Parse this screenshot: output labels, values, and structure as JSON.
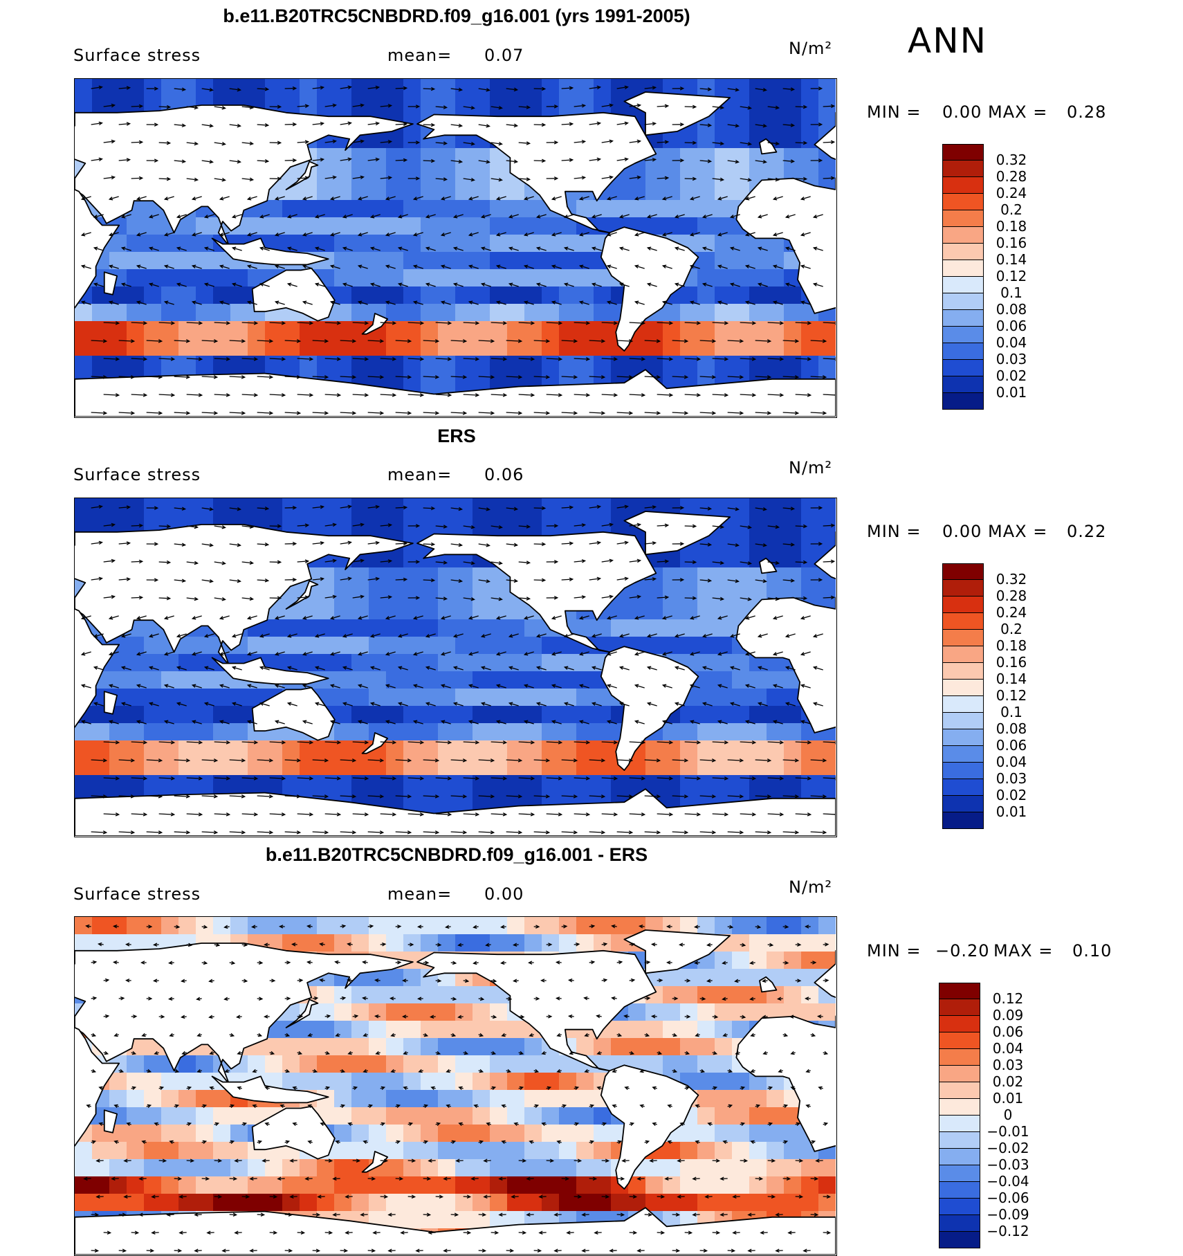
{
  "season": "ANN",
  "panels": [
    {
      "title": "b.e11.B20TRC5CNBDRD.f09_g16.001 (yrs 1991-2005)",
      "variable": "Surface stress",
      "mean_label": "mean=",
      "mean_value": "0.07",
      "units": "N/m²",
      "min_label": "MIN =",
      "min_value": "0.00",
      "max_label": "MAX =",
      "max_value": "0.28",
      "field_type": "model",
      "colorbar": {
        "levels": [
          "0.32",
          "0.28",
          "0.24",
          "0.2",
          "0.18",
          "0.16",
          "0.14",
          "0.12",
          "0.1",
          "0.08",
          "0.06",
          "0.04",
          "0.03",
          "0.02",
          "0.01"
        ],
        "colors": [
          "#7f0000",
          "#b01e0a",
          "#d83010",
          "#ef5523",
          "#f47d4a",
          "#f9a684",
          "#fcc9b0",
          "#fde9dc",
          "#d9e9fb",
          "#b1cdf6",
          "#85aef0",
          "#5a8ce8",
          "#3a6de0",
          "#1f4dd2",
          "#0e33b0",
          "#061c88"
        ]
      }
    },
    {
      "title": "ERS",
      "variable": "Surface stress",
      "mean_label": "mean=",
      "mean_value": "0.06",
      "units": "N/m²",
      "min_label": "MIN =",
      "min_value": "0.00",
      "max_label": "MAX =",
      "max_value": "0.22",
      "field_type": "obs",
      "colorbar": {
        "levels": [
          "0.32",
          "0.28",
          "0.24",
          "0.2",
          "0.18",
          "0.16",
          "0.14",
          "0.12",
          "0.1",
          "0.08",
          "0.06",
          "0.04",
          "0.03",
          "0.02",
          "0.01"
        ],
        "colors": [
          "#7f0000",
          "#b01e0a",
          "#d83010",
          "#ef5523",
          "#f47d4a",
          "#f9a684",
          "#fcc9b0",
          "#fde9dc",
          "#d9e9fb",
          "#b1cdf6",
          "#85aef0",
          "#5a8ce8",
          "#3a6de0",
          "#1f4dd2",
          "#0e33b0",
          "#061c88"
        ]
      }
    },
    {
      "title": "b.e11.B20TRC5CNBDRD.f09_g16.001 - ERS",
      "variable": "Surface stress",
      "mean_label": "mean=",
      "mean_value": "0.00",
      "units": "N/m²",
      "min_label": "MIN =",
      "min_value": "−0.20",
      "max_label": "MAX =",
      "max_value": "0.10",
      "field_type": "diff",
      "colorbar": {
        "levels": [
          "0.12",
          "0.09",
          "0.06",
          "0.04",
          "0.03",
          "0.02",
          "0.01",
          "0",
          "−0.01",
          "−0.02",
          "−0.03",
          "−0.04",
          "−0.06",
          "−0.09",
          "−0.12"
        ],
        "colors": [
          "#7f0000",
          "#b01e0a",
          "#d83010",
          "#ef5523",
          "#f47d4a",
          "#f9a684",
          "#fcc9b0",
          "#fde9dc",
          "#d9e9fb",
          "#b1cdf6",
          "#85aef0",
          "#5a8ce8",
          "#3a6de0",
          "#1f4dd2",
          "#0e33b0",
          "#061c88"
        ]
      }
    }
  ],
  "colors": {
    "land": "#ffffff",
    "coast": "#000000",
    "arrow": "#000000"
  }
}
